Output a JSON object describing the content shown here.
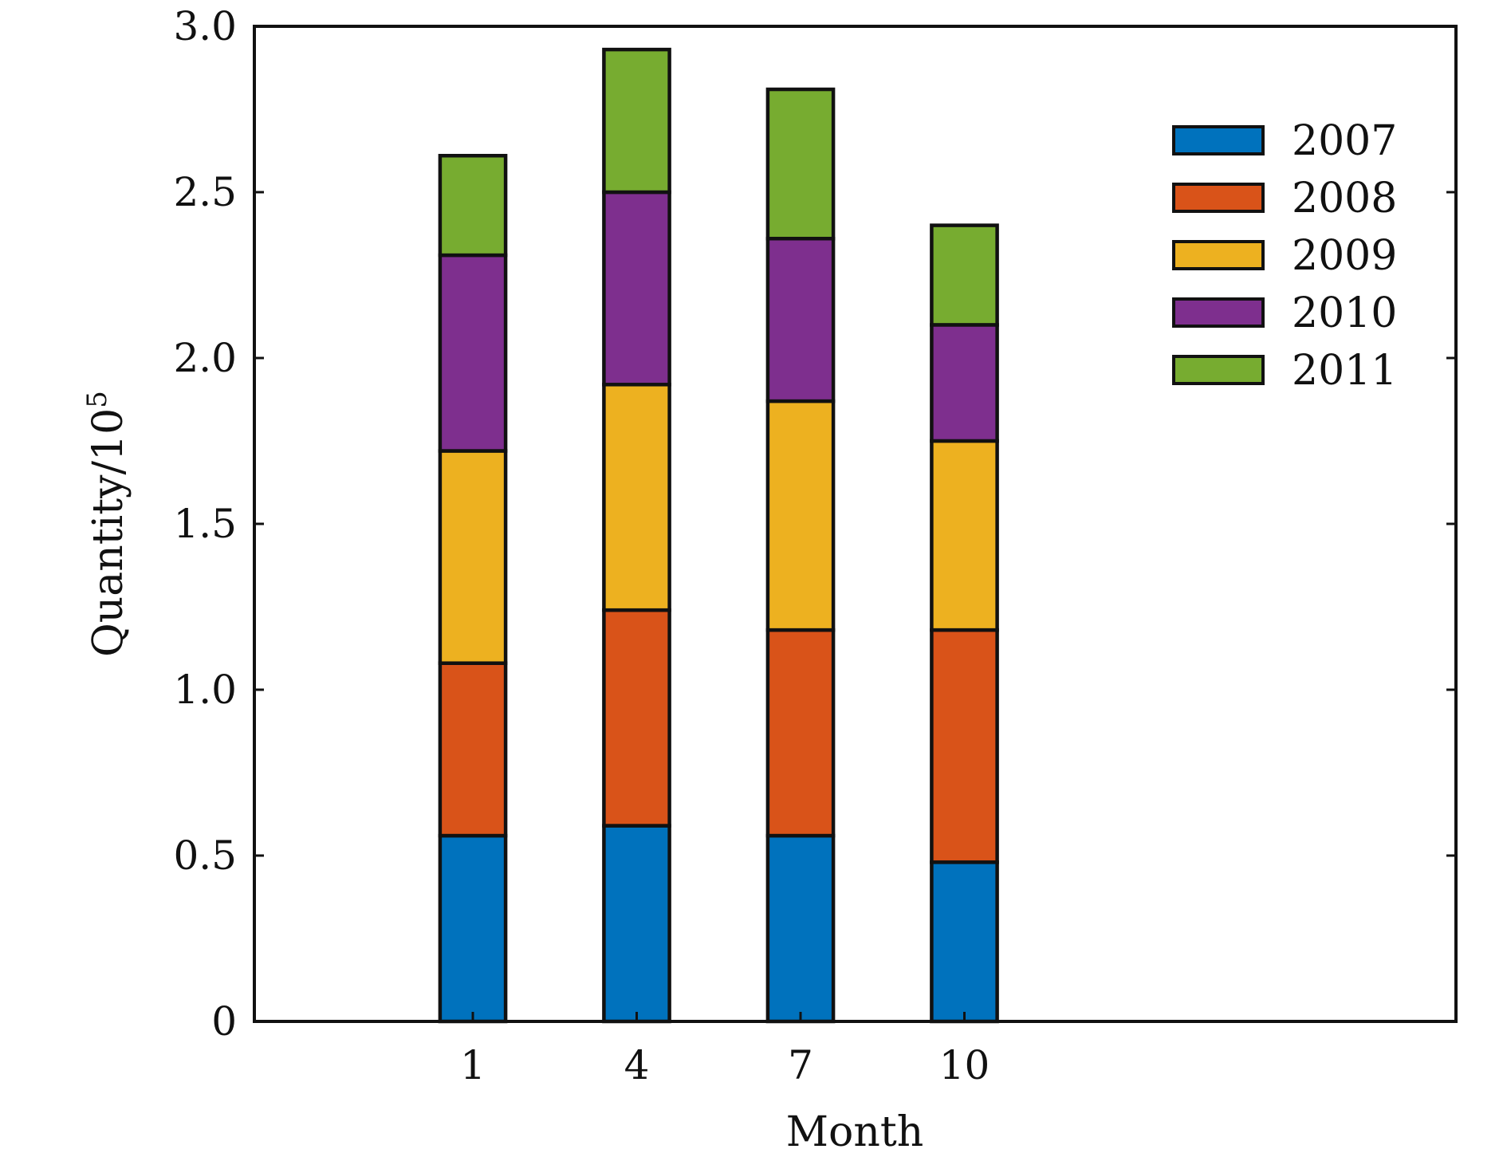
{
  "chart_data": {
    "type": "bar",
    "stacked": true,
    "categories": [
      "1",
      "4",
      "7",
      "10"
    ],
    "series": [
      {
        "name": "2007",
        "color": "#0072BD",
        "values": [
          0.56,
          0.59,
          0.56,
          0.48
        ]
      },
      {
        "name": "2008",
        "color": "#D95319",
        "values": [
          0.52,
          0.65,
          0.62,
          0.7
        ]
      },
      {
        "name": "2009",
        "color": "#EDB120",
        "values": [
          0.64,
          0.68,
          0.69,
          0.57
        ]
      },
      {
        "name": "2010",
        "color": "#7E2F8E",
        "values": [
          0.59,
          0.58,
          0.49,
          0.35
        ]
      },
      {
        "name": "2011",
        "color": "#77AC30",
        "values": [
          0.3,
          0.43,
          0.45,
          0.3
        ]
      }
    ],
    "xlabel": "Month",
    "ylabel": "Quantity/10",
    "ylabel_superscript": "5",
    "ylim": [
      0,
      3.0
    ],
    "yticks": [
      0,
      0.5,
      1.0,
      1.5,
      2.0,
      2.5,
      3.0
    ],
    "ytick_labels": [
      "0",
      "0.5",
      "1.0",
      "1.5",
      "2.0",
      "2.5",
      "3.0"
    ],
    "xlim": [
      -3,
      19
    ],
    "legend_position": "top-right",
    "grid": false
  }
}
